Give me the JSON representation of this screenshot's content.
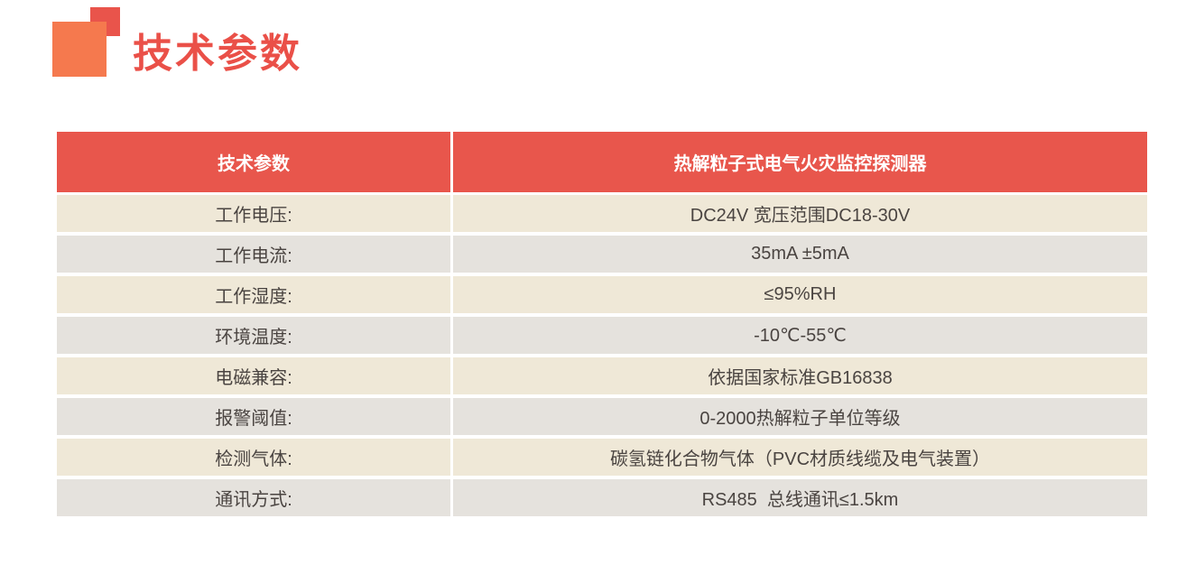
{
  "title": {
    "text": "技术参数"
  },
  "colors": {
    "header_red": "#E8564C",
    "title_red": "#EA5048",
    "square_orange": "#F5794E",
    "square_red": "#E9544B",
    "row_beige": "#EFE8D7",
    "row_gray": "#E5E2DD",
    "body_text": "#4A4441",
    "header_text": "#FFFFFF"
  },
  "table": {
    "header": {
      "col_param": "技术参数",
      "col_product": "热解粒子式电气火灾监控探测器"
    },
    "rows": [
      {
        "label": "工作电压:",
        "value": "DC24V 宽压范围DC18-30V"
      },
      {
        "label": "工作电流:",
        "value": "35mA ±5mA"
      },
      {
        "label": "工作湿度:",
        "value": "≤95%RH"
      },
      {
        "label": "环境温度:",
        "value": "-10℃-55℃"
      },
      {
        "label": "电磁兼容:",
        "value": "依据国家标准GB16838"
      },
      {
        "label": "报警阈值:",
        "value": "0-2000热解粒子单位等级"
      },
      {
        "label": "检测气体:",
        "value": "碳氢链化合物气体（PVC材质线缆及电气装置）"
      },
      {
        "label": "通讯方式:",
        "value": "RS485  总线通讯≤1.5km"
      }
    ]
  }
}
